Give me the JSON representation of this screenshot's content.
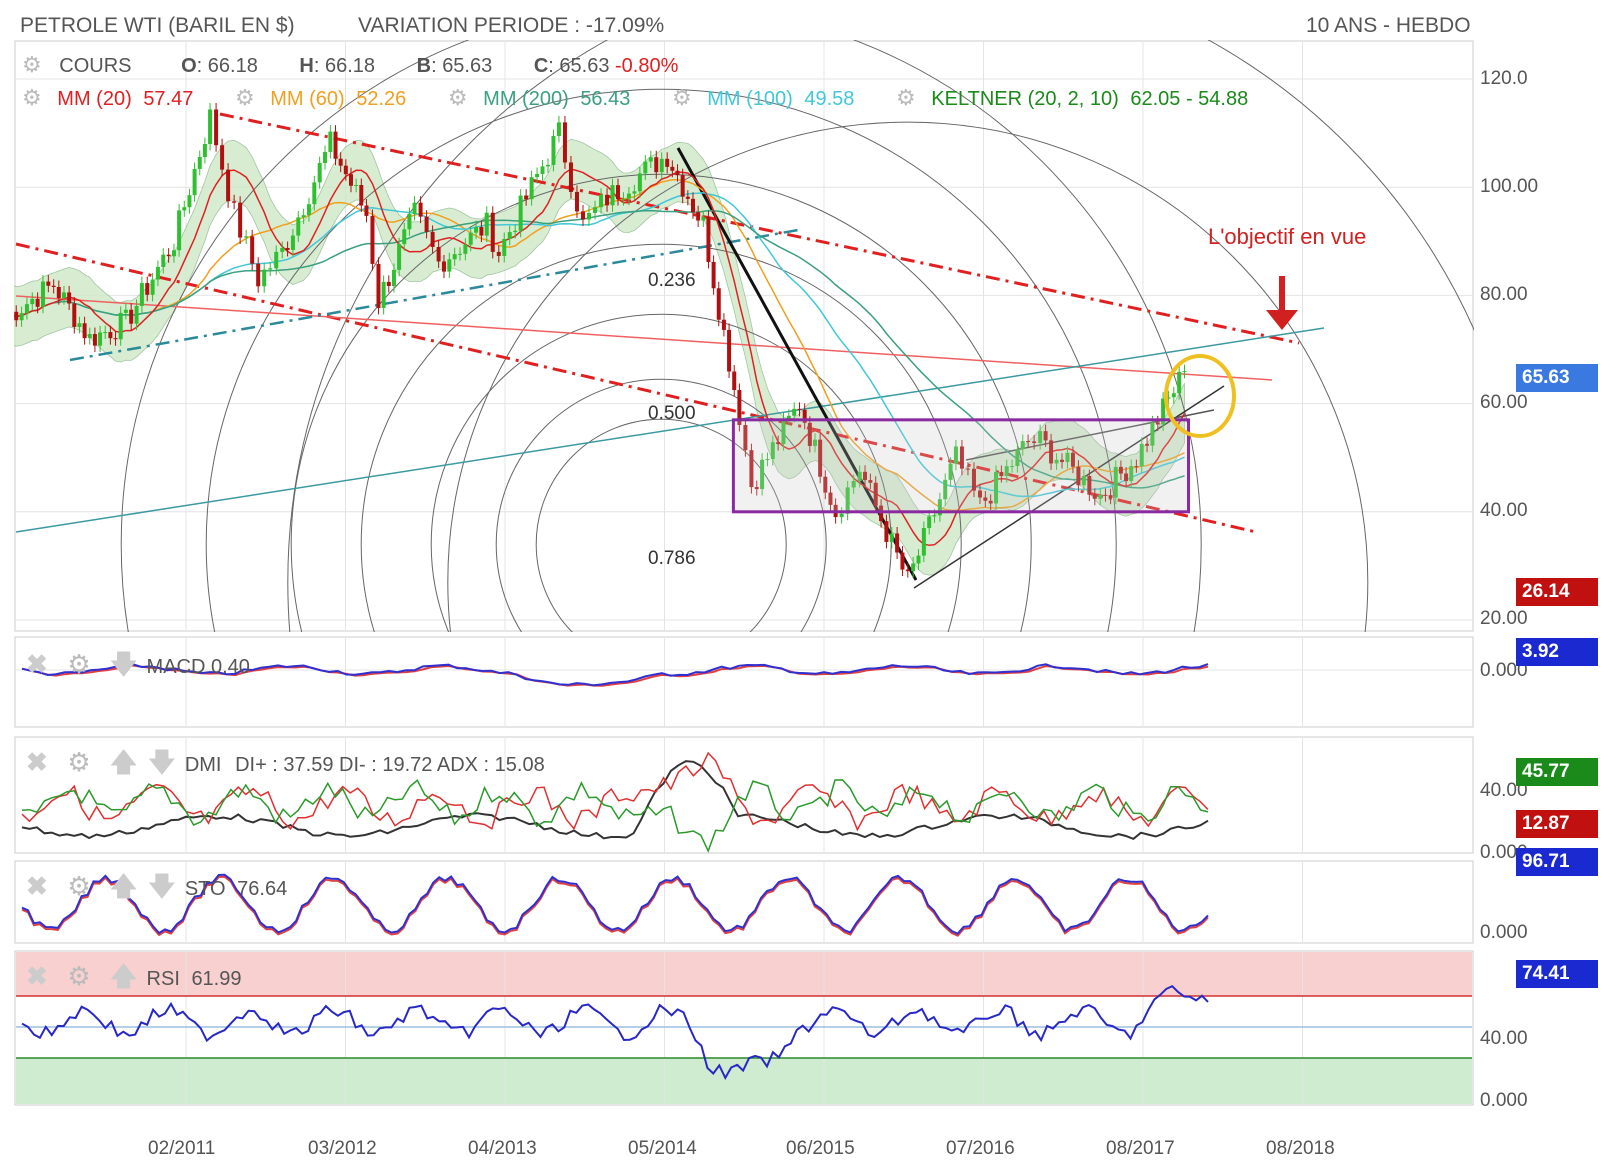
{
  "header": {
    "title": "PETROLE WTI (BARIL EN $)",
    "variation": "VARIATION PERIODE : -17.09%",
    "period": "10 ANS - HEBDO"
  },
  "cours": {
    "label": "COURS",
    "o_label": "O",
    "o": "66.18",
    "h_label": "H",
    "h": "66.18",
    "b_label": "B",
    "b": "65.63",
    "c_label": "C",
    "c": "65.63",
    "change": "-0.80%"
  },
  "indicators": [
    {
      "label": "MM (20)",
      "value": "57.47",
      "color": "#e02020"
    },
    {
      "label": "MM (60)",
      "value": "52.26",
      "color": "#f0a020"
    },
    {
      "label": "MM (200)",
      "value": "56.43",
      "color": "#3aa080"
    },
    {
      "label": "MM (100)",
      "value": "49.58",
      "color": "#40c8d8"
    },
    {
      "label": "KELTNER (20, 2, 10)",
      "value": "62.05 - 54.88",
      "color": "#1a8a1a"
    }
  ],
  "annotations": {
    "objective": "L'objectif en vue",
    "fib_0236": "0.236",
    "fib_0500": "0.500",
    "fib_0786": "0.786"
  },
  "price_axis": {
    "ticks": [
      "120.0",
      "100.00",
      "80.00",
      "60.00",
      "40.00",
      "20.00"
    ],
    "last_price": "65.63",
    "low_marker": "26.14"
  },
  "macd": {
    "label": "MACD",
    "value": "0.40",
    "tag": "3.92",
    "axis": "0.000"
  },
  "dmi": {
    "label": "DMI",
    "text": "DI+ : 37.59 DI- : 19.72 ADX : 15.08",
    "tag_green": "45.77",
    "tag_red": "12.87",
    "axis_hi": "40.00",
    "axis_lo": "0.000"
  },
  "sto": {
    "label": "STO",
    "value": "76.64",
    "tag": "96.71",
    "axis": "0.000"
  },
  "rsi": {
    "label": "RSI",
    "value": "61.99",
    "tag": "74.41",
    "axis_mid": "40.00",
    "axis_lo": "0.000"
  },
  "x_axis": [
    "02/2011",
    "03/2012",
    "04/2013",
    "05/2014",
    "06/2015",
    "07/2016",
    "08/2017",
    "08/2018"
  ],
  "colors": {
    "candle_up": "#2fc02f",
    "candle_down": "#b01010",
    "channel_red": "#e02020",
    "keltner_fill": "#cfe8c8",
    "rectangle": "#8a2aa0",
    "circle": "#f0c020",
    "tag_blue": "#1a2ad0",
    "tag_red": "#c01010",
    "tag_green": "#1a8a1a",
    "rsi_over": "#f8d0d0",
    "rsi_under": "#d0ecd0"
  },
  "chart_data": {
    "type": "candlestick",
    "title": "PETROLE WTI (BARIL EN $)",
    "x_ticks": [
      "02/2011",
      "03/2012",
      "04/2013",
      "05/2014",
      "06/2015",
      "07/2016",
      "08/2017",
      "08/2018"
    ],
    "ylim": [
      16,
      125
    ],
    "price_path": [
      [
        "2009-11",
        76
      ],
      [
        "2010-03",
        82
      ],
      [
        "2010-06",
        72
      ],
      [
        "2010-09",
        75
      ],
      [
        "2011-01",
        90
      ],
      [
        "2011-04",
        113
      ],
      [
        "2011-06",
        95
      ],
      [
        "2011-08",
        83
      ],
      [
        "2011-10",
        88
      ],
      [
        "2012-02",
        108
      ],
      [
        "2012-05",
        95
      ],
      [
        "2012-06",
        79
      ],
      [
        "2012-09",
        95
      ],
      [
        "2012-11",
        86
      ],
      [
        "2013-03",
        93
      ],
      [
        "2013-04",
        88
      ],
      [
        "2013-09",
        110
      ],
      [
        "2013-11",
        93
      ],
      [
        "2014-01",
        98
      ],
      [
        "2014-06",
        106
      ],
      [
        "2014-09",
        93
      ],
      [
        "2014-12",
        58
      ],
      [
        "2015-01",
        45
      ],
      [
        "2015-05",
        60
      ],
      [
        "2015-08",
        40
      ],
      [
        "2015-10",
        48
      ],
      [
        "2016-02",
        27
      ],
      [
        "2016-06",
        50
      ],
      [
        "2016-08",
        41
      ],
      [
        "2016-12",
        53
      ],
      [
        "2017-01",
        53
      ],
      [
        "2017-06",
        43
      ],
      [
        "2017-09",
        50
      ],
      [
        "2018-01",
        66
      ]
    ],
    "rectangle": {
      "y_low": 40,
      "y_high": 57
    },
    "fibonacci_levels": [
      "0.236",
      "0.500",
      "0.786"
    ]
  }
}
